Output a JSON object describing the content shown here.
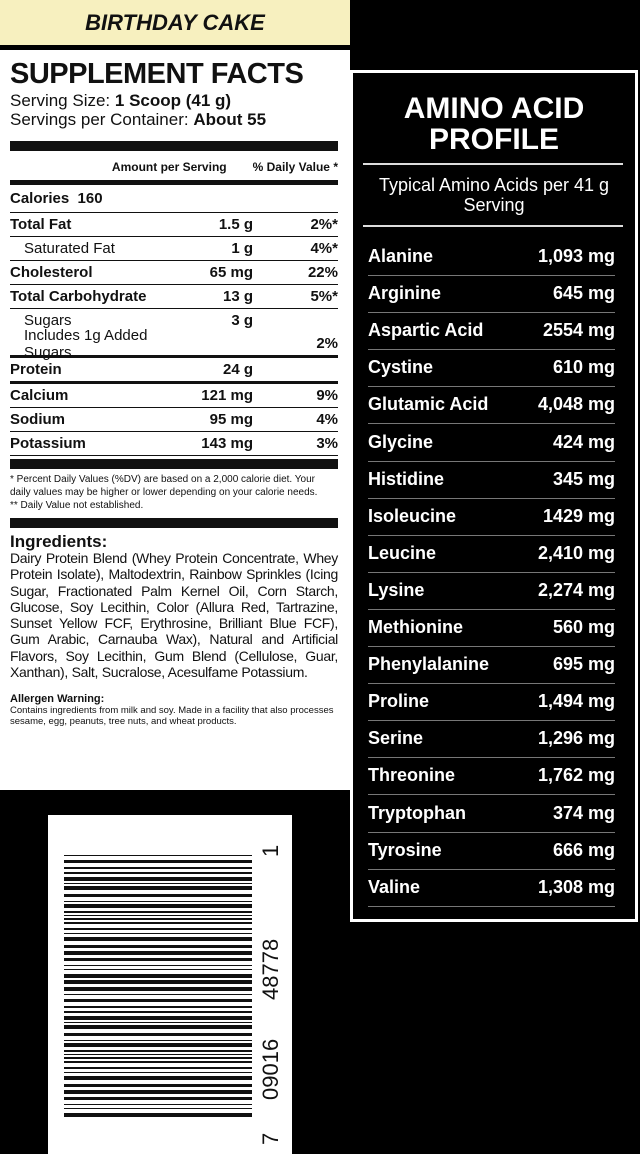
{
  "flavor": "BIRTHDAY CAKE",
  "supplement_facts": {
    "title": "SUPPLEMENT FACTS",
    "serving_size_label": "Serving Size:",
    "serving_size": "1 Scoop (41 g)",
    "servings_label": "Servings per Container:",
    "servings": "About 55",
    "amount_header": "Amount per Serving",
    "dv_header": "% Daily Value *",
    "calories_label": "Calories",
    "calories": "160",
    "rows": [
      {
        "label": "Total Fat",
        "amount": "1.5 g",
        "dv": "2%*"
      },
      {
        "label": "Saturated Fat",
        "amount": "1 g",
        "dv": "4%*"
      },
      {
        "label": "Cholesterol",
        "amount": "65 mg",
        "dv": "22%"
      },
      {
        "label": "Total Carbohydrate",
        "amount": "13 g",
        "dv": "5%*"
      },
      {
        "label": "Sugars",
        "amount": "3 g"
      },
      {
        "label": "Includes 1g Added Sugars",
        "dv": "2%"
      },
      {
        "label": "Protein",
        "amount": "24 g"
      },
      {
        "label": "Calcium",
        "amount": "121 mg",
        "dv": "9%"
      },
      {
        "label": "Sodium",
        "amount": "95 mg",
        "dv": "4%"
      },
      {
        "label": "Potassium",
        "amount": "143 mg",
        "dv": "3%"
      }
    ],
    "footnote_1": "* Percent Daily Values (%DV) are based on a 2,000 calorie diet. Your daily values may be higher or lower depending on your calorie needs.",
    "footnote_2": "** Daily Value not established.",
    "ingredients_title": "Ingredients:",
    "ingredients": "Dairy Protein Blend (Whey Protein Concentrate, Whey Protein Isolate), Maltodextrin, Rainbow Sprinkles (Icing Sugar, Fractionated Palm Kernel Oil, Corn Starch, Glucose, Soy Lecithin, Color (Allura Red, Tartrazine, Sunset Yellow FCF, Erythrosine, Brilliant Blue FCF), Gum Arabic, Carnauba Wax), Natural and Artificial Flavors, Soy Lecithin, Gum Blend (Cellulose, Guar, Xanthan), Salt, Sucralose, Acesulfame Potassium.",
    "allergen_title": "Allergen Warning:",
    "allergen": "Contains ingredients from milk and soy. Made in a facility that also processes sesame, egg, peanuts, tree nuts, and wheat products."
  },
  "amino_acid_profile": {
    "title": "AMINO ACID PROFILE",
    "subtitle": "Typical Amino Acids per 41 g Serving",
    "rows": [
      {
        "name": "Alanine",
        "amount": "1,093 mg"
      },
      {
        "name": "Arginine",
        "amount": "645 mg"
      },
      {
        "name": "Aspartic Acid",
        "amount": "2554 mg"
      },
      {
        "name": "Cystine",
        "amount": "610 mg"
      },
      {
        "name": "Glutamic Acid",
        "amount": "4,048 mg"
      },
      {
        "name": "Glycine",
        "amount": "424 mg"
      },
      {
        "name": "Histidine",
        "amount": "345 mg"
      },
      {
        "name": "Isoleucine",
        "amount": "1429 mg"
      },
      {
        "name": "Leucine",
        "amount": "2,410 mg"
      },
      {
        "name": "Lysine",
        "amount": "2,274 mg"
      },
      {
        "name": "Methionine",
        "amount": "560 mg"
      },
      {
        "name": "Phenylalanine",
        "amount": "695 mg"
      },
      {
        "name": "Proline",
        "amount": "1,494 mg"
      },
      {
        "name": "Serine",
        "amount": "1,296 mg"
      },
      {
        "name": "Threonine",
        "amount": "1,762 mg"
      },
      {
        "name": "Tryptophan",
        "amount": "374 mg"
      },
      {
        "name": "Tyrosine",
        "amount": "666 mg"
      },
      {
        "name": "Valine",
        "amount": "1,308 mg"
      }
    ]
  },
  "barcode": {
    "digits": [
      "7",
      "09016",
      "48778",
      "1"
    ]
  }
}
